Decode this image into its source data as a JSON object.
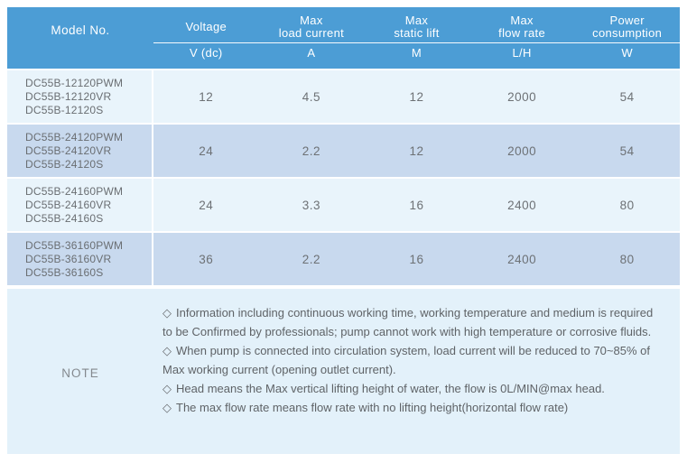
{
  "colors": {
    "header_bg": "#4C9DD5",
    "row_light_bg": "#E9F4FB",
    "row_medium_bg": "#C8D9EE",
    "note_bg": "#E3F1FA",
    "header_text": "#FFFFFF",
    "body_text": "#6D7175"
  },
  "table": {
    "model_column_header": "Model No.",
    "columns": [
      {
        "label": "Voltage",
        "unit": "V (dc)"
      },
      {
        "label": "Max\nload current",
        "unit": "A"
      },
      {
        "label": "Max\nstatic lift",
        "unit": "M"
      },
      {
        "label": "Max\nflow rate",
        "unit": "L/H"
      },
      {
        "label": "Power\nconsumption",
        "unit": "W"
      }
    ],
    "rows": [
      {
        "models": [
          "DC55B-12120PWM",
          "DC55B-12120VR",
          "DC55B-12120S"
        ],
        "values": [
          "12",
          "4.5",
          "12",
          "2000",
          "54"
        ]
      },
      {
        "models": [
          "DC55B-24120PWM",
          "DC55B-24120VR",
          "DC55B-24120S"
        ],
        "values": [
          "24",
          "2.2",
          "12",
          "2000",
          "54"
        ]
      },
      {
        "models": [
          "DC55B-24160PWM",
          "DC55B-24160VR",
          "DC55B-24160S"
        ],
        "values": [
          "24",
          "3.3",
          "16",
          "2400",
          "80"
        ]
      },
      {
        "models": [
          "DC55B-36160PWM",
          "DC55B-36160VR",
          "DC55B-36160S"
        ],
        "values": [
          "36",
          "2.2",
          "16",
          "2400",
          "80"
        ]
      }
    ]
  },
  "note": {
    "label": "NOTE",
    "bullet": "◇",
    "items": [
      "Information including continuous working time, working temperature and medium is required to be Confirmed by professionals; pump cannot work with high temperature or corrosive fluids.",
      "When pump is connected into circulation system, load current will be reduced to 70~85% of Max working current (opening outlet current).",
      "Head means the Max vertical lifting height of water, the flow is 0L/MIN@max head.",
      "The max flow rate means flow rate with no lifting height(horizontal flow rate)"
    ]
  },
  "chart_data": {
    "type": "table",
    "title": "DC55B pump specifications",
    "columns": [
      "Model No.",
      "Voltage V (dc)",
      "Max load current A",
      "Max static lift M",
      "Max flow rate L/H",
      "Power consumption W"
    ],
    "rows": [
      [
        "DC55B-12120PWM / DC55B-12120VR / DC55B-12120S",
        12,
        4.5,
        12,
        2000,
        54
      ],
      [
        "DC55B-24120PWM / DC55B-24120VR / DC55B-24120S",
        24,
        2.2,
        12,
        2000,
        54
      ],
      [
        "DC55B-24160PWM / DC55B-24160VR / DC55B-24160S",
        24,
        3.3,
        16,
        2400,
        80
      ],
      [
        "DC55B-36160PWM / DC55B-36160VR / DC55B-36160S",
        36,
        2.2,
        16,
        2400,
        80
      ]
    ]
  }
}
